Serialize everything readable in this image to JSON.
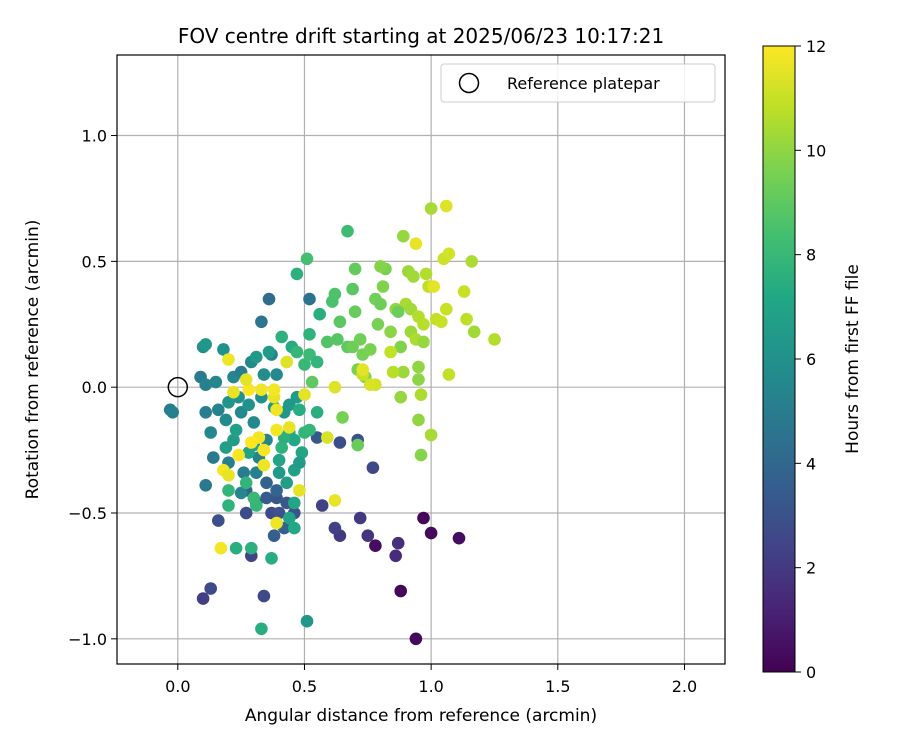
{
  "chart_data": {
    "type": "scatter",
    "title": "FOV centre drift starting at 2025/06/23 10:17:21",
    "xlabel": "Angular distance from reference (arcmin)",
    "ylabel": "Rotation from reference (arcmin)",
    "xlim": [
      -0.24,
      2.16
    ],
    "ylim": [
      -1.1,
      1.32
    ],
    "xticks": [
      0.0,
      0.5,
      1.0,
      1.5,
      2.0
    ],
    "xtick_labels": [
      "0.0",
      "0.5",
      "1.0",
      "1.5",
      "2.0"
    ],
    "yticks": [
      -1.0,
      -0.5,
      0.0,
      0.5,
      1.0
    ],
    "ytick_labels": [
      "−1.0",
      "−0.5",
      "0.0",
      "0.5",
      "1.0"
    ],
    "grid": true,
    "legend": {
      "placement": "top-right",
      "entries": [
        {
          "label": "Reference platepar",
          "marker": "open-circle"
        }
      ]
    },
    "reference_point": {
      "x": 0.0,
      "y": 0.0
    },
    "colorbar": {
      "label": "Hours from first FF file",
      "range": [
        0,
        12
      ],
      "ticks": [
        0,
        2,
        4,
        6,
        8,
        10,
        12
      ],
      "colormap": "viridis",
      "colors": [
        "#440154",
        "#482475",
        "#414487",
        "#355f8d",
        "#2a788e",
        "#21918c",
        "#22a884",
        "#44bf70",
        "#7ad151",
        "#bddf26",
        "#fde725"
      ]
    },
    "points": [
      {
        "x": 0.97,
        "y": -0.52,
        "c": 0.2
      },
      {
        "x": 1.0,
        "y": -0.58,
        "c": 0.3
      },
      {
        "x": 1.11,
        "y": -0.6,
        "c": 0.4
      },
      {
        "x": 0.88,
        "y": -0.81,
        "c": 0.2
      },
      {
        "x": 0.94,
        "y": -1.0,
        "c": 0.3
      },
      {
        "x": 0.78,
        "y": -0.63,
        "c": 0.4
      },
      {
        "x": 0.87,
        "y": -0.62,
        "c": 1.6
      },
      {
        "x": 0.86,
        "y": -0.67,
        "c": 1.5
      },
      {
        "x": 0.75,
        "y": -0.59,
        "c": 1.8
      },
      {
        "x": 0.72,
        "y": -0.52,
        "c": 2.0
      },
      {
        "x": 0.64,
        "y": -0.59,
        "c": 2.0
      },
      {
        "x": 0.62,
        "y": -0.56,
        "c": 2.3
      },
      {
        "x": 0.57,
        "y": -0.47,
        "c": 2.3
      },
      {
        "x": 0.77,
        "y": -0.32,
        "c": 2.6
      },
      {
        "x": 0.64,
        "y": -0.22,
        "c": 2.8
      },
      {
        "x": 0.71,
        "y": -0.21,
        "c": 3.0
      },
      {
        "x": 0.55,
        "y": -0.2,
        "c": 3.3
      },
      {
        "x": 0.1,
        "y": -0.84,
        "c": 2.2
      },
      {
        "x": 0.13,
        "y": -0.8,
        "c": 2.7
      },
      {
        "x": 0.34,
        "y": -0.83,
        "c": 2.6
      },
      {
        "x": 0.29,
        "y": -0.67,
        "c": 2.4
      },
      {
        "x": 0.16,
        "y": -0.53,
        "c": 2.9
      },
      {
        "x": 0.27,
        "y": -0.5,
        "c": 2.8
      },
      {
        "x": 0.37,
        "y": -0.5,
        "c": 2.7
      },
      {
        "x": 0.4,
        "y": -0.5,
        "c": 3.0
      },
      {
        "x": 0.35,
        "y": -0.44,
        "c": 3.4
      },
      {
        "x": 0.39,
        "y": -0.44,
        "c": 3.2
      },
      {
        "x": 0.43,
        "y": -0.46,
        "c": 3.3
      },
      {
        "x": 0.46,
        "y": -0.5,
        "c": 3.1
      },
      {
        "x": 0.31,
        "y": -0.46,
        "c": 3.5
      },
      {
        "x": 0.35,
        "y": -0.38,
        "c": 3.8
      },
      {
        "x": 0.39,
        "y": -0.41,
        "c": 3.9
      },
      {
        "x": 0.27,
        "y": -0.41,
        "c": 3.7
      },
      {
        "x": 0.38,
        "y": -0.59,
        "c": 3.6
      },
      {
        "x": 0.42,
        "y": -0.56,
        "c": 3.8
      },
      {
        "x": 0.36,
        "y": 0.35,
        "c": 4.2
      },
      {
        "x": 0.52,
        "y": 0.35,
        "c": 4.6
      },
      {
        "x": 0.33,
        "y": 0.26,
        "c": 4.7
      },
      {
        "x": 0.11,
        "y": -0.39,
        "c": 4.8
      },
      {
        "x": 0.14,
        "y": -0.28,
        "c": 4.9
      },
      {
        "x": 0.2,
        "y": -0.3,
        "c": 5.1
      },
      {
        "x": 0.26,
        "y": -0.34,
        "c": 5.0
      },
      {
        "x": 0.31,
        "y": -0.34,
        "c": 5.2
      },
      {
        "x": 0.25,
        "y": -0.42,
        "c": 5.4
      },
      {
        "x": 0.32,
        "y": -0.28,
        "c": 5.3
      },
      {
        "x": 0.35,
        "y": -0.21,
        "c": 5.5
      },
      {
        "x": 0.3,
        "y": -0.14,
        "c": 5.6
      },
      {
        "x": 0.25,
        "y": -0.1,
        "c": 5.6
      },
      {
        "x": 0.19,
        "y": -0.13,
        "c": 5.7
      },
      {
        "x": 0.13,
        "y": -0.18,
        "c": 5.5
      },
      {
        "x": 0.16,
        "y": -0.09,
        "c": 5.3
      },
      {
        "x": 0.11,
        "y": -0.1,
        "c": 5.1
      },
      {
        "x": -0.03,
        "y": -0.09,
        "c": 5.0
      },
      {
        "x": -0.02,
        "y": -0.1,
        "c": 5.2
      },
      {
        "x": 0.09,
        "y": 0.04,
        "c": 4.9
      },
      {
        "x": 0.11,
        "y": 0.01,
        "c": 5.2
      },
      {
        "x": 0.15,
        "y": 0.02,
        "c": 5.5
      },
      {
        "x": 0.22,
        "y": 0.04,
        "c": 5.4
      },
      {
        "x": 0.25,
        "y": 0.06,
        "c": 5.1
      },
      {
        "x": 0.29,
        "y": 0.1,
        "c": 5.6
      },
      {
        "x": 0.34,
        "y": 0.05,
        "c": 5.8
      },
      {
        "x": 0.37,
        "y": 0.13,
        "c": 5.3
      },
      {
        "x": 0.39,
        "y": 0.05,
        "c": 5.6
      },
      {
        "x": 0.33,
        "y": -0.04,
        "c": 5.9
      },
      {
        "x": 0.28,
        "y": -0.07,
        "c": 6.0
      },
      {
        "x": 0.38,
        "y": -0.08,
        "c": 6.2
      },
      {
        "x": 0.42,
        "y": -0.1,
        "c": 6.3
      },
      {
        "x": 0.44,
        "y": -0.07,
        "c": 6.4
      },
      {
        "x": 0.47,
        "y": -0.04,
        "c": 6.5
      },
      {
        "x": 0.24,
        "y": -0.04,
        "c": 6.1
      },
      {
        "x": 0.2,
        "y": -0.06,
        "c": 6.2
      },
      {
        "x": 0.18,
        "y": 0.15,
        "c": 6.0
      },
      {
        "x": 0.1,
        "y": 0.16,
        "c": 5.9
      },
      {
        "x": 0.11,
        "y": 0.17,
        "c": 6.3
      },
      {
        "x": 0.31,
        "y": 0.12,
        "c": 6.4
      },
      {
        "x": 0.36,
        "y": 0.14,
        "c": 6.5
      },
      {
        "x": 0.22,
        "y": -0.21,
        "c": 6.6
      },
      {
        "x": 0.19,
        "y": -0.24,
        "c": 6.7
      },
      {
        "x": 0.23,
        "y": -0.17,
        "c": 6.8
      },
      {
        "x": 0.28,
        "y": -0.26,
        "c": 6.9
      },
      {
        "x": 0.3,
        "y": -0.23,
        "c": 7.0
      },
      {
        "x": 0.4,
        "y": -0.29,
        "c": 7.0
      },
      {
        "x": 0.44,
        "y": -0.18,
        "c": 7.1
      },
      {
        "x": 0.46,
        "y": -0.21,
        "c": 7.2
      },
      {
        "x": 0.49,
        "y": -0.26,
        "c": 7.0
      },
      {
        "x": 0.46,
        "y": -0.33,
        "c": 6.8
      },
      {
        "x": 0.48,
        "y": -0.3,
        "c": 6.6
      },
      {
        "x": 0.4,
        "y": -0.34,
        "c": 6.4
      },
      {
        "x": 0.43,
        "y": -0.38,
        "c": 6.7
      },
      {
        "x": 0.46,
        "y": -0.46,
        "c": 7.1
      },
      {
        "x": 0.44,
        "y": -0.52,
        "c": 6.9
      },
      {
        "x": 0.46,
        "y": -0.56,
        "c": 7.2
      },
      {
        "x": 0.37,
        "y": -0.68,
        "c": 7.4
      },
      {
        "x": 0.33,
        "y": -0.96,
        "c": 7.4
      },
      {
        "x": 0.51,
        "y": -0.93,
        "c": 6.3
      },
      {
        "x": 0.23,
        "y": -0.64,
        "c": 7.5
      },
      {
        "x": 0.29,
        "y": -0.64,
        "c": 7.6
      },
      {
        "x": 0.2,
        "y": -0.47,
        "c": 7.7
      },
      {
        "x": 0.2,
        "y": -0.41,
        "c": 7.8
      },
      {
        "x": 0.31,
        "y": -0.47,
        "c": 7.9
      },
      {
        "x": 0.3,
        "y": -0.44,
        "c": 8.0
      },
      {
        "x": 0.27,
        "y": -0.38,
        "c": 7.8
      },
      {
        "x": 0.41,
        "y": -0.24,
        "c": 7.7
      },
      {
        "x": 0.42,
        "y": -0.2,
        "c": 7.6
      },
      {
        "x": 0.5,
        "y": -0.18,
        "c": 7.8
      },
      {
        "x": 0.52,
        "y": -0.17,
        "c": 7.9
      },
      {
        "x": 0.55,
        "y": -0.1,
        "c": 7.5
      },
      {
        "x": 0.48,
        "y": -0.09,
        "c": 7.4
      },
      {
        "x": 0.45,
        "y": 0.16,
        "c": 7.3
      },
      {
        "x": 0.41,
        "y": 0.2,
        "c": 7.6
      },
      {
        "x": 0.47,
        "y": 0.14,
        "c": 7.9
      },
      {
        "x": 0.5,
        "y": 0.09,
        "c": 8.0
      },
      {
        "x": 0.52,
        "y": 0.13,
        "c": 8.1
      },
      {
        "x": 0.55,
        "y": 0.1,
        "c": 7.8
      },
      {
        "x": 0.52,
        "y": 0.21,
        "c": 7.7
      },
      {
        "x": 0.56,
        "y": 0.29,
        "c": 7.5
      },
      {
        "x": 0.47,
        "y": 0.45,
        "c": 7.6
      },
      {
        "x": 0.51,
        "y": 0.51,
        "c": 8.4
      },
      {
        "x": 0.67,
        "y": 0.62,
        "c": 8.2
      },
      {
        "x": 0.61,
        "y": 0.34,
        "c": 8.5
      },
      {
        "x": 0.62,
        "y": 0.37,
        "c": 8.6
      },
      {
        "x": 0.59,
        "y": 0.18,
        "c": 8.7
      },
      {
        "x": 0.63,
        "y": 0.19,
        "c": 8.8
      },
      {
        "x": 0.64,
        "y": 0.26,
        "c": 8.9
      },
      {
        "x": 0.67,
        "y": 0.16,
        "c": 9.0
      },
      {
        "x": 0.69,
        "y": 0.39,
        "c": 8.9
      },
      {
        "x": 0.7,
        "y": 0.47,
        "c": 9.1
      },
      {
        "x": 0.7,
        "y": 0.3,
        "c": 9.2
      },
      {
        "x": 0.69,
        "y": 0.16,
        "c": 9.3
      },
      {
        "x": 0.72,
        "y": 0.19,
        "c": 9.4
      },
      {
        "x": 0.73,
        "y": 0.13,
        "c": 9.5
      },
      {
        "x": 0.71,
        "y": 0.07,
        "c": 9.6
      },
      {
        "x": 0.74,
        "y": 0.04,
        "c": 9.7
      },
      {
        "x": 0.76,
        "y": 0.15,
        "c": 9.6
      },
      {
        "x": 0.79,
        "y": 0.25,
        "c": 9.5
      },
      {
        "x": 0.78,
        "y": 0.35,
        "c": 9.4
      },
      {
        "x": 0.8,
        "y": 0.33,
        "c": 9.3
      },
      {
        "x": 0.82,
        "y": 0.47,
        "c": 9.6
      },
      {
        "x": 0.8,
        "y": 0.48,
        "c": 9.8
      },
      {
        "x": 0.81,
        "y": 0.4,
        "c": 9.7
      },
      {
        "x": 0.84,
        "y": 0.22,
        "c": 9.9
      },
      {
        "x": 0.86,
        "y": 0.31,
        "c": 10.0
      },
      {
        "x": 0.89,
        "y": 0.6,
        "c": 10.1
      },
      {
        "x": 0.91,
        "y": 0.46,
        "c": 10.2
      },
      {
        "x": 0.93,
        "y": 0.44,
        "c": 10.3
      },
      {
        "x": 0.9,
        "y": 0.33,
        "c": 10.4
      },
      {
        "x": 0.92,
        "y": 0.31,
        "c": 10.3
      },
      {
        "x": 0.92,
        "y": 0.22,
        "c": 10.2
      },
      {
        "x": 0.94,
        "y": 0.19,
        "c": 10.5
      },
      {
        "x": 0.95,
        "y": 0.28,
        "c": 10.6
      },
      {
        "x": 0.97,
        "y": 0.25,
        "c": 10.7
      },
      {
        "x": 0.98,
        "y": 0.45,
        "c": 10.6
      },
      {
        "x": 0.99,
        "y": 0.4,
        "c": 10.8
      },
      {
        "x": 1.0,
        "y": 0.71,
        "c": 10.4
      },
      {
        "x": 1.02,
        "y": 0.27,
        "c": 10.9
      },
      {
        "x": 1.04,
        "y": 0.26,
        "c": 11.0
      },
      {
        "x": 1.06,
        "y": 0.31,
        "c": 11.0
      },
      {
        "x": 1.05,
        "y": 0.51,
        "c": 11.1
      },
      {
        "x": 1.07,
        "y": 0.53,
        "c": 11.2
      },
      {
        "x": 1.06,
        "y": 0.72,
        "c": 11.4
      },
      {
        "x": 1.13,
        "y": 0.38,
        "c": 11.0
      },
      {
        "x": 1.14,
        "y": 0.27,
        "c": 10.8
      },
      {
        "x": 1.16,
        "y": 0.5,
        "c": 10.5
      },
      {
        "x": 1.17,
        "y": 0.22,
        "c": 10.3
      },
      {
        "x": 1.25,
        "y": 0.19,
        "c": 10.6
      },
      {
        "x": 1.07,
        "y": 0.05,
        "c": 10.9
      },
      {
        "x": 0.97,
        "y": 0.18,
        "c": 10.1
      },
      {
        "x": 0.95,
        "y": 0.08,
        "c": 10.0
      },
      {
        "x": 0.95,
        "y": 0.03,
        "c": 9.9
      },
      {
        "x": 0.89,
        "y": 0.06,
        "c": 10.2
      },
      {
        "x": 0.88,
        "y": 0.16,
        "c": 9.7
      },
      {
        "x": 0.87,
        "y": 0.3,
        "c": 9.3
      },
      {
        "x": 0.88,
        "y": -0.04,
        "c": 10.1
      },
      {
        "x": 0.96,
        "y": -0.03,
        "c": 10.5
      },
      {
        "x": 0.95,
        "y": -0.13,
        "c": 10.0
      },
      {
        "x": 1.0,
        "y": -0.19,
        "c": 10.4
      },
      {
        "x": 0.96,
        "y": -0.27,
        "c": 9.8
      },
      {
        "x": 0.65,
        "y": -0.12,
        "c": 9.5
      },
      {
        "x": 0.71,
        "y": -0.23,
        "c": 9.2
      },
      {
        "x": 0.53,
        "y": 0.02,
        "c": 9.0
      },
      {
        "x": 0.85,
        "y": 0.06,
        "c": 10.7
      },
      {
        "x": 0.84,
        "y": 0.14,
        "c": 10.9
      },
      {
        "x": 0.78,
        "y": 0.01,
        "c": 11.2
      },
      {
        "x": 0.73,
        "y": 0.05,
        "c": 11.0
      },
      {
        "x": 0.73,
        "y": 0.07,
        "c": 11.5
      },
      {
        "x": 0.76,
        "y": 0.01,
        "c": 11.3
      },
      {
        "x": 0.94,
        "y": 0.57,
        "c": 11.6
      },
      {
        "x": 1.01,
        "y": 0.4,
        "c": 11.5
      },
      {
        "x": 0.62,
        "y": 0.0,
        "c": 11.4
      },
      {
        "x": 0.59,
        "y": -0.2,
        "c": 11.3
      },
      {
        "x": 0.62,
        "y": -0.45,
        "c": 11.6
      },
      {
        "x": 0.48,
        "y": -0.41,
        "c": 11.5
      },
      {
        "x": 0.44,
        "y": -0.16,
        "c": 11.6
      },
      {
        "x": 0.39,
        "y": -0.09,
        "c": 11.7
      },
      {
        "x": 0.39,
        "y": -0.17,
        "c": 11.8
      },
      {
        "x": 0.38,
        "y": -0.04,
        "c": 11.6
      },
      {
        "x": 0.38,
        "y": -0.01,
        "c": 11.8
      },
      {
        "x": 0.33,
        "y": -0.01,
        "c": 11.7
      },
      {
        "x": 0.28,
        "y": -0.01,
        "c": 11.9
      },
      {
        "x": 0.27,
        "y": 0.03,
        "c": 11.5
      },
      {
        "x": 0.22,
        "y": -0.02,
        "c": 11.6
      },
      {
        "x": 0.2,
        "y": 0.11,
        "c": 11.7
      },
      {
        "x": 0.32,
        "y": -0.2,
        "c": 11.8
      },
      {
        "x": 0.34,
        "y": -0.25,
        "c": 11.9
      },
      {
        "x": 0.29,
        "y": -0.22,
        "c": 12.0
      },
      {
        "x": 0.24,
        "y": -0.27,
        "c": 11.9
      },
      {
        "x": 0.34,
        "y": -0.31,
        "c": 11.7
      },
      {
        "x": 0.18,
        "y": -0.33,
        "c": 11.8
      },
      {
        "x": 0.2,
        "y": -0.35,
        "c": 11.6
      },
      {
        "x": 0.39,
        "y": -0.54,
        "c": 11.7
      },
      {
        "x": 0.17,
        "y": -0.64,
        "c": 11.8
      },
      {
        "x": 0.5,
        "y": -0.03,
        "c": 11.5
      },
      {
        "x": 0.43,
        "y": 0.1,
        "c": 11.4
      }
    ]
  }
}
